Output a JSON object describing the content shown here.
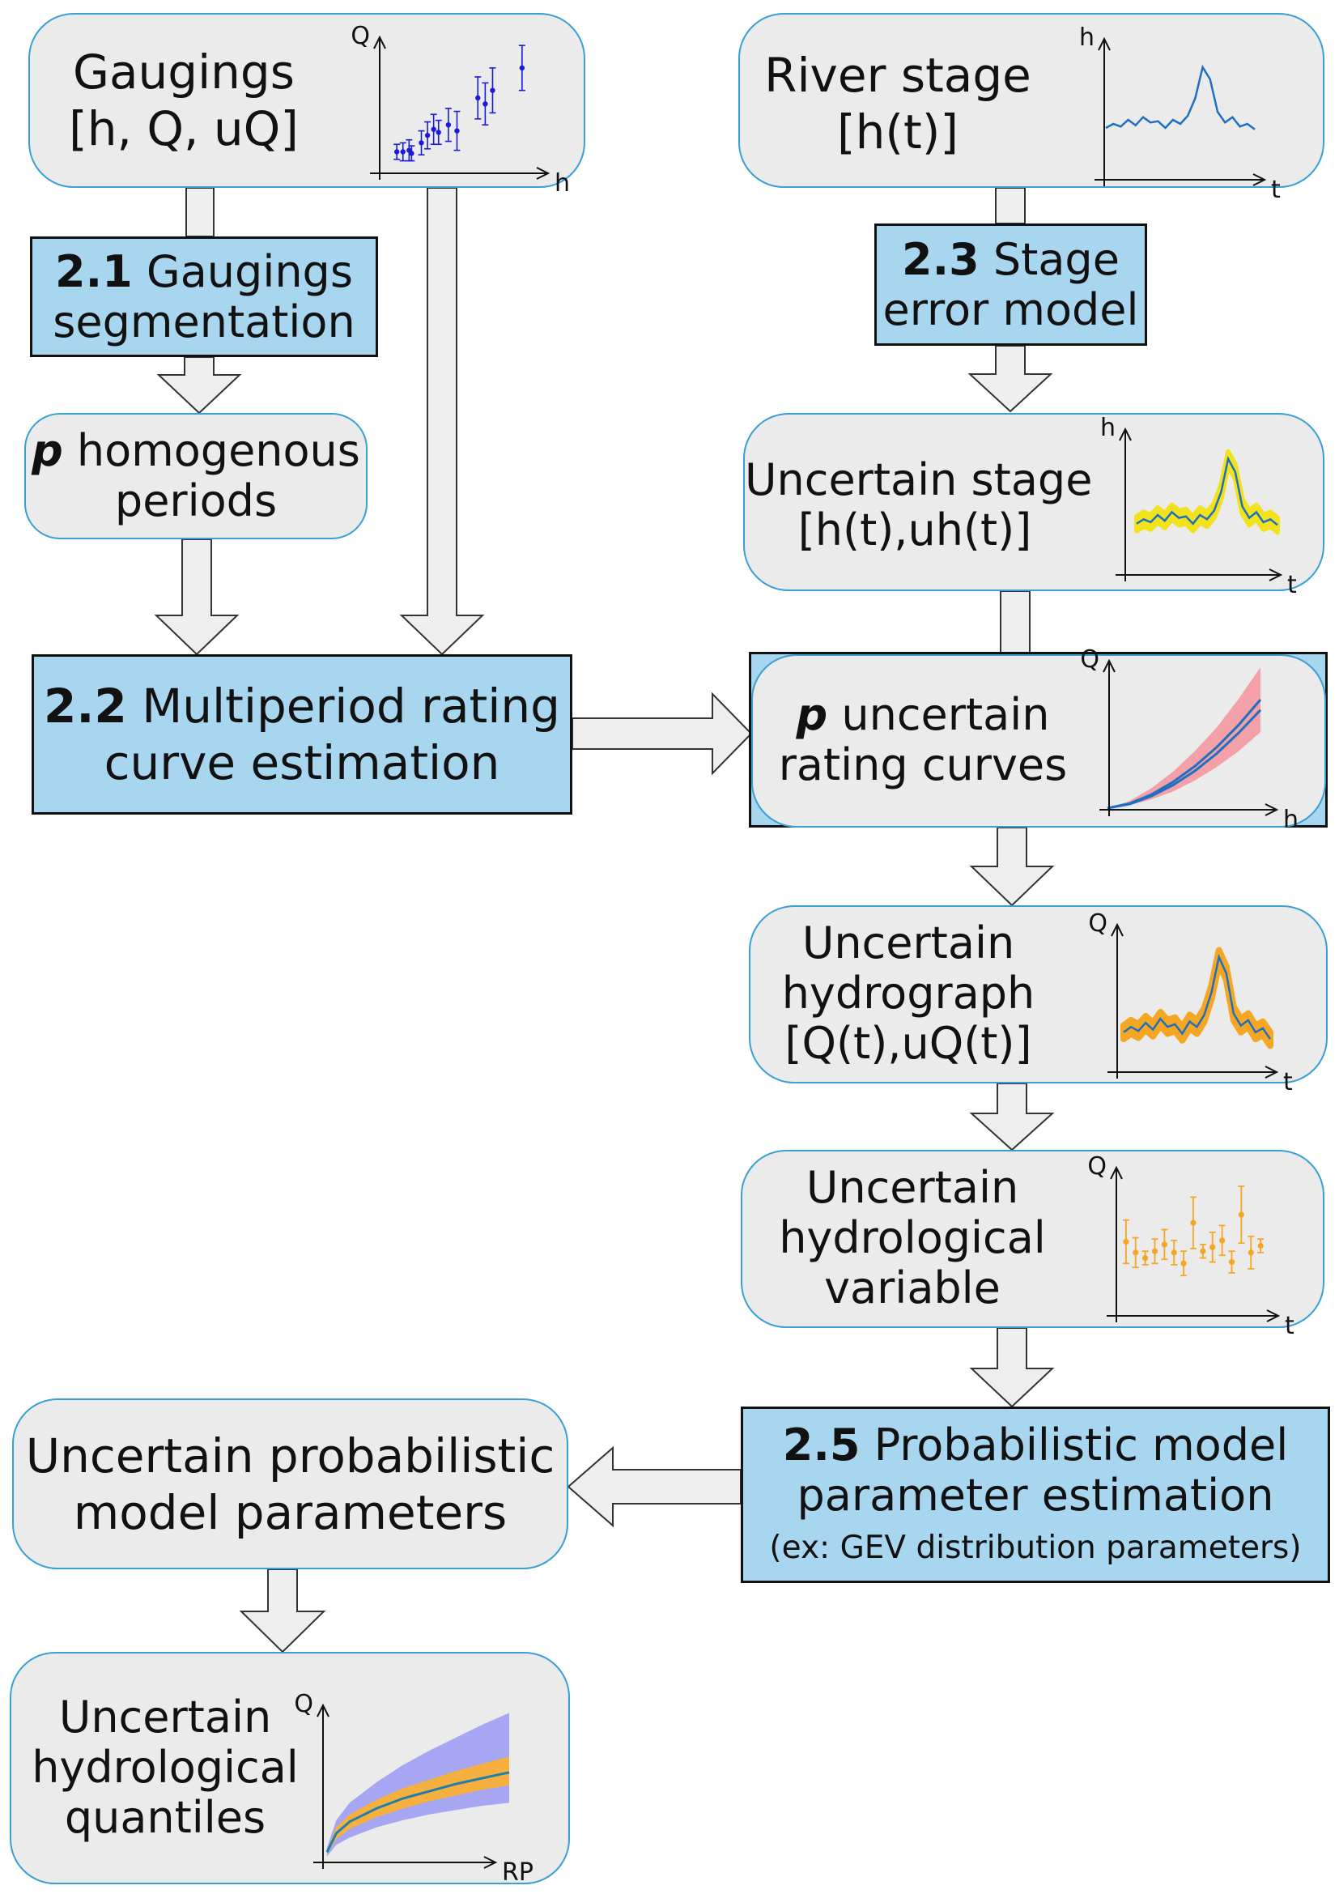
{
  "nodes": {
    "gaugings": {
      "lines": [
        "Gaugings",
        "[h, Q, uQ]"
      ]
    },
    "segmentation": {
      "number": "2.1",
      "lines": [
        "Gaugings",
        "segmentation"
      ]
    },
    "homogenous": {
      "p": "p",
      "lines": [
        "homogenous",
        "periods"
      ]
    },
    "multiperiod": {
      "number": "2.2",
      "lines": [
        "Multiperiod rating",
        "curve estimation"
      ]
    },
    "river_stage": {
      "lines": [
        "River stage",
        "[h(t)]"
      ]
    },
    "stage_error": {
      "number": "2.3",
      "lines": [
        "Stage",
        "error model"
      ]
    },
    "uncertain_stage": {
      "lines": [
        "Uncertain stage",
        "[h(t),uh(t)]"
      ]
    },
    "rating_curves": {
      "p": "p",
      "lines": [
        "uncertain",
        "rating curves"
      ]
    },
    "hydrograph": {
      "lines": [
        "Uncertain",
        "hydrograph",
        "[Q(t),uQ(t)]"
      ]
    },
    "hydro_variable": {
      "lines": [
        "Uncertain",
        "hydrological",
        "variable"
      ]
    },
    "prob_estimation": {
      "number": "2.5",
      "lines": [
        "Probabilistic model",
        "parameter estimation"
      ],
      "note": "(ex: GEV distribution parameters)"
    },
    "prob_params": {
      "lines": [
        "Uncertain probabilistic",
        "model parameters"
      ]
    },
    "quantiles": {
      "lines": [
        "Uncertain",
        "hydrological",
        "quantiles"
      ]
    }
  },
  "axes": {
    "gaugings": {
      "y": "Q",
      "x": "h"
    },
    "river_stage": {
      "y": "h",
      "x": "t"
    },
    "uncertain_stage": {
      "y": "h",
      "x": "t"
    },
    "rating_curves": {
      "y": "Q",
      "x": "h"
    },
    "hydrograph": {
      "y": "Q",
      "x": "t"
    },
    "hydro_variable": {
      "y": "Q",
      "x": "t"
    },
    "quantiles": {
      "y": "Q",
      "x": "RP"
    }
  },
  "colors": {
    "io_fill": "#ebebeb",
    "io_border": "#3aa0d4",
    "proc_fill": "#a8d6ef",
    "arrow_fill": "#eeeeee",
    "gauging_points": "#1a1adb",
    "series_line": "#1f6fc0",
    "stage_band": "#f2e21c",
    "rating_band": "#f4a0a8",
    "hydro_band": "#f5a623",
    "variable_points": "#f5a623",
    "quantile_outer": "#a6a6f2",
    "quantile_inner": "#f5b040",
    "quantile_line": "#1f7fa8"
  },
  "chart_data": [
    {
      "type": "scatter",
      "xlabel": "h",
      "ylabel": "Q",
      "points": [
        {
          "x": 1.0,
          "y": 1.0,
          "err": 0.5
        },
        {
          "x": 1.5,
          "y": 1.0,
          "err": 0.6
        },
        {
          "x": 2.0,
          "y": 1.1,
          "err": 0.7
        },
        {
          "x": 2.2,
          "y": 0.9,
          "err": 0.5
        },
        {
          "x": 3.0,
          "y": 1.6,
          "err": 0.8
        },
        {
          "x": 3.5,
          "y": 2.1,
          "err": 0.9
        },
        {
          "x": 4.0,
          "y": 2.5,
          "err": 1.0
        },
        {
          "x": 4.4,
          "y": 2.3,
          "err": 0.8
        },
        {
          "x": 5.2,
          "y": 2.8,
          "err": 1.1
        },
        {
          "x": 5.9,
          "y": 2.4,
          "err": 1.3
        },
        {
          "x": 7.6,
          "y": 4.6,
          "err": 1.4
        },
        {
          "x": 8.2,
          "y": 4.2,
          "err": 1.4
        },
        {
          "x": 8.8,
          "y": 5.1,
          "err": 1.5
        },
        {
          "x": 11.2,
          "y": 6.6,
          "err": 1.5
        }
      ]
    },
    {
      "type": "line",
      "xlabel": "t",
      "ylabel": "h",
      "y": [
        3.0,
        3.3,
        3.1,
        3.6,
        3.2,
        3.8,
        3.4,
        3.5,
        3.0,
        3.6,
        3.3,
        3.9,
        5.2,
        7.5,
        6.6,
        4.2,
        3.4,
        3.8,
        3.1,
        3.3,
        2.9
      ]
    },
    {
      "type": "area",
      "xlabel": "t",
      "ylabel": "h",
      "y": [
        3.0,
        3.3,
        3.1,
        3.6,
        3.2,
        3.8,
        3.4,
        3.5,
        3.0,
        3.6,
        3.3,
        3.9,
        5.2,
        7.5,
        6.6,
        4.2,
        3.4,
        3.8,
        3.1,
        3.3,
        2.9
      ],
      "band": 0.5
    },
    {
      "type": "line",
      "xlabel": "h",
      "ylabel": "Q",
      "x": [
        0,
        1,
        2,
        3,
        4,
        5,
        6,
        7
      ],
      "series": [
        {
          "values": [
            0,
            0.25,
            0.75,
            1.45,
            2.35,
            3.45,
            4.75,
            6.2
          ]
        },
        {
          "values": [
            0,
            0.28,
            0.85,
            1.65,
            2.65,
            3.85,
            5.25,
            6.85
          ]
        }
      ],
      "band_low": [
        0,
        0.18,
        0.55,
        1.05,
        1.75,
        2.6,
        3.6,
        4.8
      ],
      "band_high": [
        0,
        0.45,
        1.25,
        2.3,
        3.6,
        5.1,
        6.9,
        8.9
      ]
    },
    {
      "type": "area",
      "xlabel": "t",
      "ylabel": "Q",
      "y": [
        2.6,
        3.0,
        2.7,
        3.3,
        2.8,
        3.6,
        3.0,
        3.2,
        2.5,
        3.4,
        3.0,
        3.9,
        5.6,
        8.2,
        7.0,
        4.0,
        3.1,
        3.5,
        2.6,
        2.9,
        2.1
      ],
      "band": 0.5
    },
    {
      "type": "scatter",
      "xlabel": "t",
      "ylabel": "Q",
      "points": [
        {
          "x": 1,
          "y": 5.0,
          "err": 1.6
        },
        {
          "x": 2,
          "y": 4.2,
          "err": 1.1
        },
        {
          "x": 3,
          "y": 3.8,
          "err": 0.5
        },
        {
          "x": 4,
          "y": 4.3,
          "err": 0.9
        },
        {
          "x": 5,
          "y": 4.8,
          "err": 1.1
        },
        {
          "x": 6,
          "y": 4.2,
          "err": 0.9
        },
        {
          "x": 7,
          "y": 3.4,
          "err": 0.9
        },
        {
          "x": 8,
          "y": 6.4,
          "err": 1.9
        },
        {
          "x": 9,
          "y": 4.3,
          "err": 0.5
        },
        {
          "x": 10,
          "y": 4.6,
          "err": 1.1
        },
        {
          "x": 11,
          "y": 5.1,
          "err": 1.1
        },
        {
          "x": 12,
          "y": 3.5,
          "err": 0.8
        },
        {
          "x": 13,
          "y": 7.0,
          "err": 2.1
        },
        {
          "x": 14,
          "y": 4.2,
          "err": 1.2
        },
        {
          "x": 15,
          "y": 4.7,
          "err": 0.5
        }
      ]
    },
    {
      "type": "area",
      "xlabel": "RP",
      "ylabel": "Q",
      "x": [
        0.3,
        1,
        2,
        4,
        6,
        8,
        10,
        12,
        14
      ],
      "median": [
        0.6,
        1.9,
        2.7,
        3.6,
        4.3,
        4.8,
        5.3,
        5.7,
        6.1
      ],
      "inner_low": [
        0.45,
        1.5,
        2.2,
        3.0,
        3.6,
        4.1,
        4.5,
        4.9,
        5.2
      ],
      "inner_high": [
        0.75,
        2.3,
        3.2,
        4.2,
        5.0,
        5.6,
        6.2,
        6.7,
        7.2
      ],
      "outer_low": [
        0.3,
        1.1,
        1.6,
        2.3,
        2.8,
        3.2,
        3.5,
        3.8,
        4.0
      ],
      "outer_high": [
        0.9,
        2.8,
        4.0,
        5.4,
        6.6,
        7.6,
        8.5,
        9.4,
        10.2
      ]
    }
  ]
}
